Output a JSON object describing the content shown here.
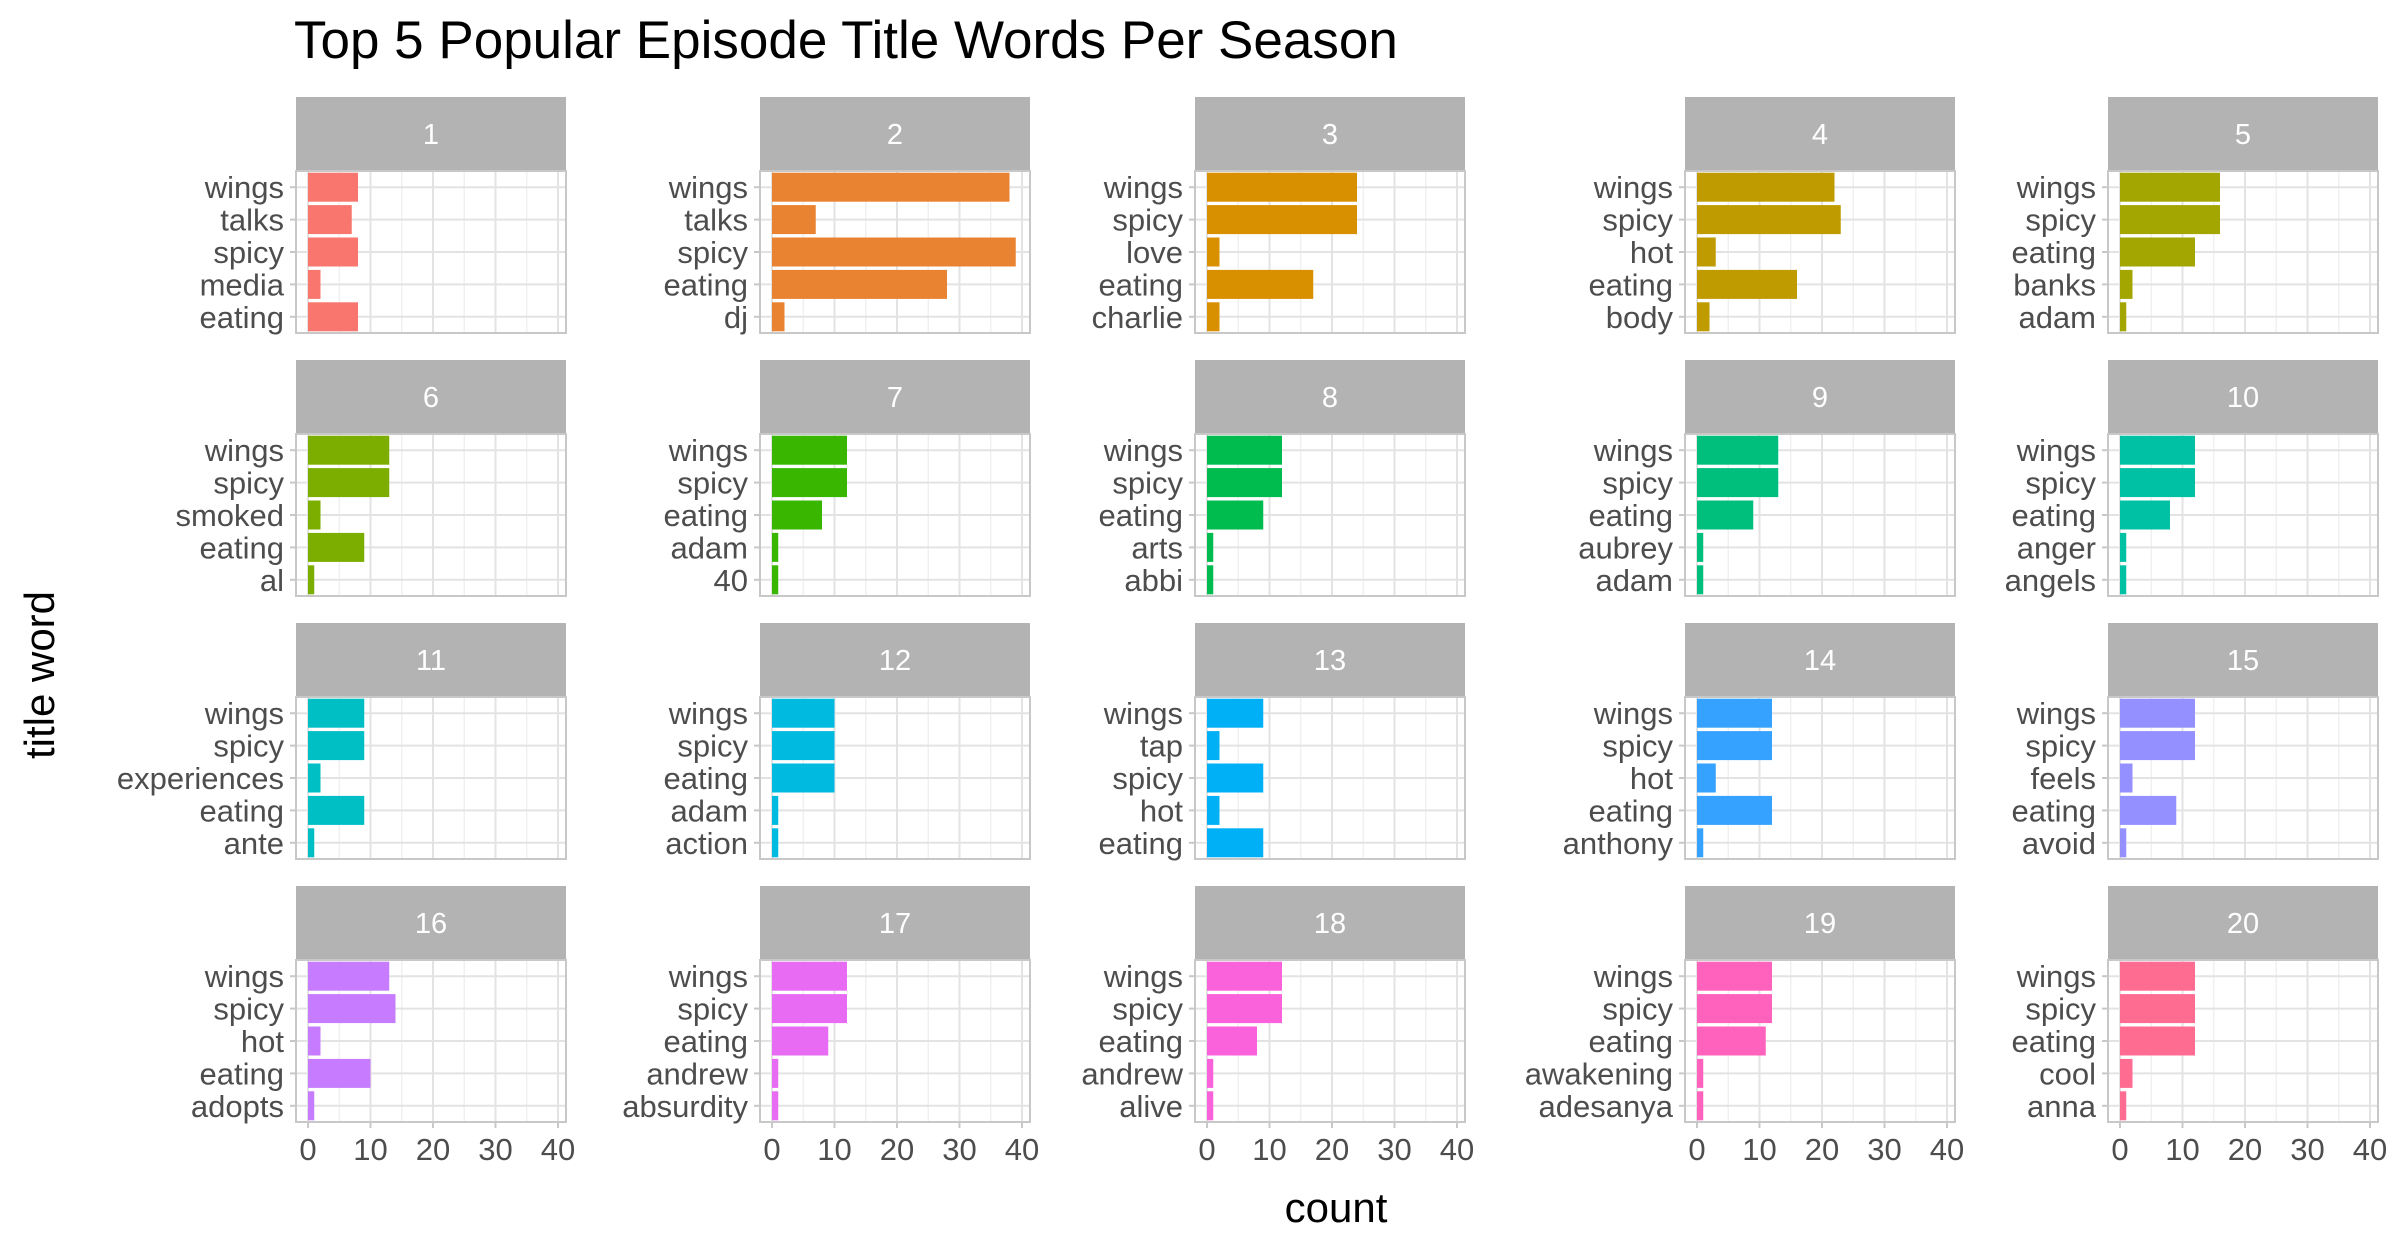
{
  "chart_data": {
    "type": "bar",
    "orientation": "horizontal",
    "facet_type": "wrap",
    "facet_rows": 4,
    "facet_cols": 5,
    "title": "Top 5 Popular Episode Title Words Per Season",
    "xlabel": "count",
    "ylabel": "title word",
    "xlim": [
      0,
      40
    ],
    "x_ticks": [
      0,
      10,
      20,
      30,
      40
    ],
    "grid": true,
    "legend": "none",
    "panels": [
      {
        "season": "1",
        "color": "#F8766D",
        "categories": [
          "wings",
          "talks",
          "spicy",
          "media",
          "eating"
        ],
        "values": [
          8,
          7,
          8,
          2,
          8
        ]
      },
      {
        "season": "2",
        "color": "#EA8331",
        "categories": [
          "wings",
          "talks",
          "spicy",
          "eating",
          "dj"
        ],
        "values": [
          38,
          7,
          39,
          28,
          2
        ]
      },
      {
        "season": "3",
        "color": "#D89000",
        "categories": [
          "wings",
          "spicy",
          "love",
          "eating",
          "charlie"
        ],
        "values": [
          24,
          24,
          2,
          17,
          2
        ]
      },
      {
        "season": "4",
        "color": "#C09B00",
        "categories": [
          "wings",
          "spicy",
          "hot",
          "eating",
          "body"
        ],
        "values": [
          22,
          23,
          3,
          16,
          2
        ]
      },
      {
        "season": "5",
        "color": "#A3A500",
        "categories": [
          "wings",
          "spicy",
          "eating",
          "banks",
          "adam"
        ],
        "values": [
          16,
          16,
          12,
          2,
          1
        ]
      },
      {
        "season": "6",
        "color": "#7CAE00",
        "categories": [
          "wings",
          "spicy",
          "smoked",
          "eating",
          "al"
        ],
        "values": [
          13,
          13,
          2,
          9,
          1
        ]
      },
      {
        "season": "7",
        "color": "#39B600",
        "categories": [
          "wings",
          "spicy",
          "eating",
          "adam",
          "40"
        ],
        "values": [
          12,
          12,
          8,
          1,
          1
        ]
      },
      {
        "season": "8",
        "color": "#00BB4E",
        "categories": [
          "wings",
          "spicy",
          "eating",
          "arts",
          "abbi"
        ],
        "values": [
          12,
          12,
          9,
          1,
          1
        ]
      },
      {
        "season": "9",
        "color": "#00BF7D",
        "categories": [
          "wings",
          "spicy",
          "eating",
          "aubrey",
          "adam"
        ],
        "values": [
          13,
          13,
          9,
          1,
          1
        ]
      },
      {
        "season": "10",
        "color": "#00C1A3",
        "categories": [
          "wings",
          "spicy",
          "eating",
          "anger",
          "angels"
        ],
        "values": [
          12,
          12,
          8,
          1,
          1
        ]
      },
      {
        "season": "11",
        "color": "#00BFC4",
        "categories": [
          "wings",
          "spicy",
          "experiences",
          "eating",
          "ante"
        ],
        "values": [
          9,
          9,
          2,
          9,
          1
        ]
      },
      {
        "season": "12",
        "color": "#00BAE0",
        "categories": [
          "wings",
          "spicy",
          "eating",
          "adam",
          "action"
        ],
        "values": [
          10,
          10,
          10,
          1,
          1
        ]
      },
      {
        "season": "13",
        "color": "#00B0F6",
        "categories": [
          "wings",
          "tap",
          "spicy",
          "hot",
          "eating"
        ],
        "values": [
          9,
          2,
          9,
          2,
          9
        ]
      },
      {
        "season": "14",
        "color": "#35A2FF",
        "categories": [
          "wings",
          "spicy",
          "hot",
          "eating",
          "anthony"
        ],
        "values": [
          12,
          12,
          3,
          12,
          1
        ]
      },
      {
        "season": "15",
        "color": "#9590FF",
        "categories": [
          "wings",
          "spicy",
          "feels",
          "eating",
          "avoid"
        ],
        "values": [
          12,
          12,
          2,
          9,
          1
        ]
      },
      {
        "season": "16",
        "color": "#C77CFF",
        "categories": [
          "wings",
          "spicy",
          "hot",
          "eating",
          "adopts"
        ],
        "values": [
          13,
          14,
          2,
          10,
          1
        ]
      },
      {
        "season": "17",
        "color": "#E76BF3",
        "categories": [
          "wings",
          "spicy",
          "eating",
          "andrew",
          "absurdity"
        ],
        "values": [
          12,
          12,
          9,
          1,
          1
        ]
      },
      {
        "season": "18",
        "color": "#FA62DB",
        "categories": [
          "wings",
          "spicy",
          "eating",
          "andrew",
          "alive"
        ],
        "values": [
          12,
          12,
          8,
          1,
          1
        ]
      },
      {
        "season": "19",
        "color": "#FF62BC",
        "categories": [
          "wings",
          "spicy",
          "eating",
          "awakening",
          "adesanya"
        ],
        "values": [
          12,
          12,
          11,
          1,
          1
        ]
      },
      {
        "season": "20",
        "color": "#FF6C91",
        "categories": [
          "wings",
          "spicy",
          "eating",
          "cool",
          "anna"
        ],
        "values": [
          12,
          12,
          12,
          2,
          1
        ]
      }
    ]
  }
}
